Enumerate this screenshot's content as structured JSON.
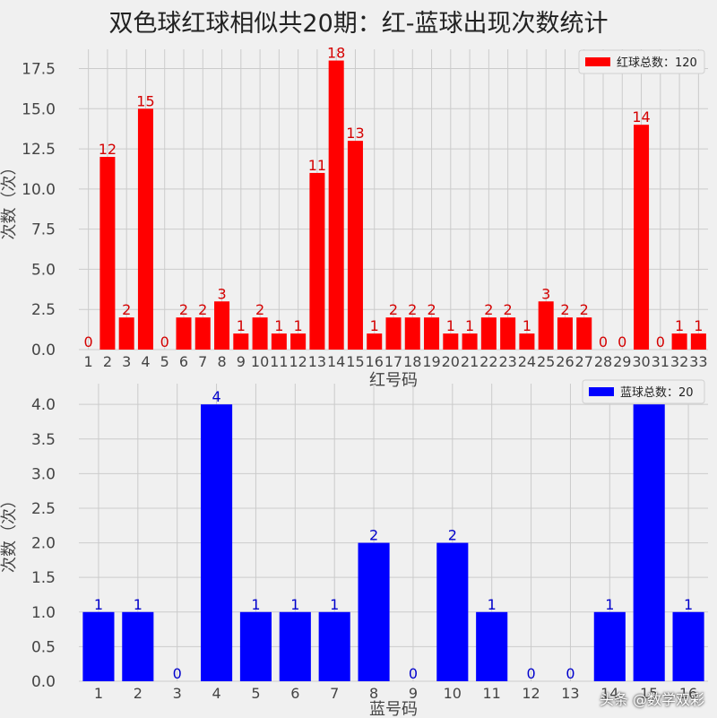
{
  "title": "双色球红球相似共20期：红-蓝球出现次数统计",
  "watermark": "头条 @数学双彩",
  "chart_data": [
    {
      "type": "bar",
      "xlabel": "红号码",
      "ylabel": "次数（次）",
      "legend": "红球总数：120",
      "legend_position": "top-right",
      "color": "#ff0000",
      "label_color": "#d40000",
      "grid": true,
      "categories": [
        "1",
        "2",
        "3",
        "4",
        "5",
        "6",
        "7",
        "8",
        "9",
        "10",
        "11",
        "12",
        "13",
        "14",
        "15",
        "16",
        "17",
        "18",
        "19",
        "20",
        "21",
        "22",
        "23",
        "24",
        "25",
        "26",
        "27",
        "28",
        "29",
        "30",
        "31",
        "32",
        "33"
      ],
      "values": [
        0,
        12,
        2,
        15,
        0,
        2,
        2,
        3,
        1,
        2,
        1,
        1,
        11,
        18,
        13,
        1,
        2,
        2,
        2,
        1,
        1,
        2,
        2,
        1,
        3,
        2,
        2,
        0,
        0,
        14,
        0,
        1,
        1
      ],
      "yticks": [
        "0.0",
        "2.5",
        "5.0",
        "7.5",
        "10.0",
        "12.5",
        "15.0",
        "17.5"
      ],
      "ylim": [
        0,
        18.7
      ]
    },
    {
      "type": "bar",
      "xlabel": "蓝号码",
      "ylabel": "次数（次）",
      "legend": "蓝球总数：20",
      "legend_position": "top-right",
      "color": "#0000ff",
      "label_color": "#0000cc",
      "grid": true,
      "categories": [
        "1",
        "2",
        "3",
        "4",
        "5",
        "6",
        "7",
        "8",
        "9",
        "10",
        "11",
        "12",
        "13",
        "14",
        "15",
        "16"
      ],
      "values": [
        1,
        1,
        0,
        4,
        1,
        1,
        1,
        2,
        0,
        2,
        1,
        0,
        0,
        1,
        4,
        1
      ],
      "yticks": [
        "0.0",
        "0.5",
        "1.0",
        "1.5",
        "2.0",
        "2.5",
        "3.0",
        "3.5",
        "4.0"
      ],
      "ylim": [
        0,
        4.3
      ]
    }
  ]
}
